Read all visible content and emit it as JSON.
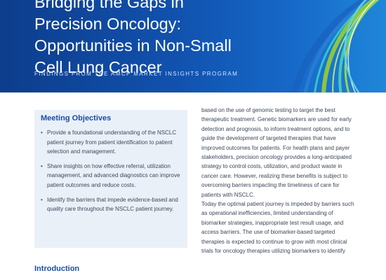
{
  "header": {
    "title_lines": [
      "Bridging the Gaps in",
      "Precision Oncology:",
      "Opportunities in Non-Small",
      "Cell Lung Cancer"
    ],
    "subtitle": "FINDINGS FROM THE AMCP MARKET INSIGHTS PROGRAM",
    "colors": {
      "banner_dark": "#0d3d8c",
      "banner_light": "#1f86d9",
      "arc_green": "#8cc63f",
      "arc_teal": "#36c2c9"
    }
  },
  "objectives": {
    "heading": "Meeting Objectives",
    "items": [
      "Provide a foundational understanding of the NSCLC patient journey from patient identification to patient selection and management.",
      "Share insights on how effective referral, utilization management, and advanced diagnostics can improve patient outcomes and reduce costs.",
      "Identify the barriers that impede evidence-based and quality care throughout the NSCLC patient journey."
    ],
    "bullet": "•"
  },
  "introduction": {
    "heading": "Introduction"
  },
  "body": {
    "paragraph_1": "based on the use of genomic testing to target the best therapeutic treatment. Genetic biomarkers are used for early detection and prognosis, to inform treatment options, and to guide the development of targeted therapies that have improved outcomes for patients. For health plans and payer stakeholders, precision oncology provides a long-anticipated strategy to control costs, utilization, and product waste in cancer care. However, realizing these benefits is subject to overcoming barriers impacting the timeliness of care for patients with NSCLC.",
    "paragraph_2": "Today the optimal patient journey is impeded by barriers such as operational inefficiencies, limited understanding of biomarker strategies, inappropriate test result usage, and access barriers. The use of biomarker-based targeted therapies is expected to continue to grow with most clinical trials for oncology therapies utilizing biomarkers to identify"
  }
}
